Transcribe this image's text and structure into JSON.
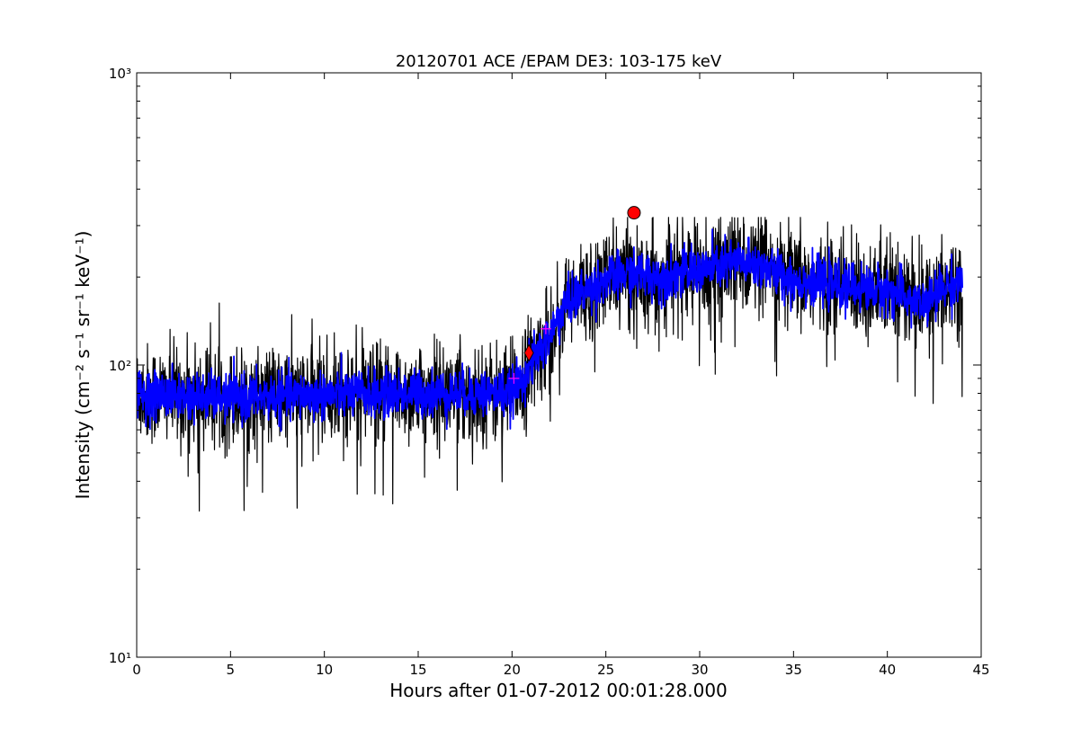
{
  "chart_data": {
    "type": "line",
    "title": "20120701 ACE /EPAM DE3: 103-175 keV",
    "xlabel": "Hours after 01-07-2012 00:01:28.000",
    "ylabel": "Intensity (cm⁻² s⁻¹ sr⁻¹ keV⁻¹)",
    "xlim": [
      0,
      45
    ],
    "ylim": [
      10,
      1000
    ],
    "yscale": "log",
    "grid": false,
    "x_ticks": [
      0,
      5,
      10,
      15,
      20,
      25,
      30,
      35,
      40,
      45
    ],
    "x_tick_labels": [
      "0",
      "5",
      "10",
      "15",
      "20",
      "25",
      "30",
      "35",
      "40",
      "45"
    ],
    "y_ticks": [
      10,
      100,
      1000
    ],
    "y_tick_labels": [
      "10¹",
      "10²",
      "10³"
    ],
    "series": [
      {
        "style": "raw",
        "color": "#000000",
        "x_range": [
          0,
          44
        ],
        "profile": {
          "x": [
            0,
            5,
            10,
            15,
            20,
            21,
            22,
            23,
            25,
            26,
            28,
            30,
            32,
            33,
            35,
            38,
            40,
            42,
            43,
            44
          ],
          "y": [
            80,
            77,
            79,
            80,
            80,
            100,
            125,
            165,
            195,
            205,
            200,
            210,
            225,
            220,
            195,
            185,
            180,
            160,
            185,
            195
          ]
        },
        "min_value": 29,
        "max_value": 320
      },
      {
        "style": "smoothed",
        "color": "#0000ff",
        "x_range": [
          0,
          44
        ],
        "profile": {
          "x": [
            0,
            5,
            10,
            15,
            20,
            21,
            22,
            23,
            25,
            26,
            28,
            30,
            32,
            33,
            35,
            38,
            40,
            42,
            43,
            44
          ],
          "y": [
            80,
            77,
            79,
            80,
            80,
            100,
            125,
            165,
            195,
            205,
            200,
            210,
            225,
            220,
            195,
            185,
            180,
            160,
            185,
            195
          ]
        }
      }
    ],
    "markers": [
      {
        "shape": "plus",
        "x": 20.1,
        "y": 90,
        "color": "#ff00ff"
      },
      {
        "shape": "plus",
        "x": 21.8,
        "y": 133,
        "color": "#ff00ff"
      },
      {
        "shape": "diamond",
        "x": 20.9,
        "y": 110,
        "color": "#ff0000"
      },
      {
        "shape": "circle",
        "x": 26.5,
        "y": 332,
        "color": "#ff0000"
      }
    ]
  }
}
